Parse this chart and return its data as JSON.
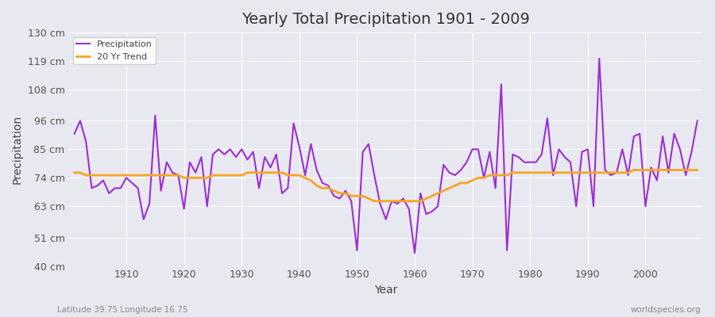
{
  "title": "Yearly Total Precipitation 1901 - 2009",
  "xlabel": "Year",
  "ylabel": "Precipitation",
  "subtitle_left": "Latitude 39.75 Longitude 16.75",
  "subtitle_right": "worldspecies.org",
  "ylim": [
    40,
    130
  ],
  "xlim": [
    1901,
    2009
  ],
  "yticks": [
    40,
    51,
    63,
    74,
    85,
    96,
    108,
    119,
    130
  ],
  "ytick_labels": [
    "40 cm",
    "51 cm",
    "63 cm",
    "74 cm",
    "85 cm",
    "96 cm",
    "108 cm",
    "119 cm",
    "130 cm"
  ],
  "background_color": "#e8e8f0",
  "plot_bg_color": "#e8e8f0",
  "precip_color": "#9b30d0",
  "trend_color": "#f5a623",
  "precip_linewidth": 1.5,
  "trend_linewidth": 2.0,
  "years": [
    1901,
    1902,
    1903,
    1904,
    1905,
    1906,
    1907,
    1908,
    1909,
    1910,
    1911,
    1912,
    1913,
    1914,
    1915,
    1916,
    1917,
    1918,
    1919,
    1920,
    1921,
    1922,
    1923,
    1924,
    1925,
    1926,
    1927,
    1928,
    1929,
    1930,
    1931,
    1932,
    1933,
    1934,
    1935,
    1936,
    1937,
    1938,
    1939,
    1940,
    1941,
    1942,
    1943,
    1944,
    1945,
    1946,
    1947,
    1948,
    1949,
    1950,
    1951,
    1952,
    1953,
    1954,
    1955,
    1956,
    1957,
    1958,
    1959,
    1960,
    1961,
    1962,
    1963,
    1964,
    1965,
    1966,
    1967,
    1968,
    1969,
    1970,
    1971,
    1972,
    1973,
    1974,
    1975,
    1976,
    1977,
    1978,
    1979,
    1980,
    1981,
    1982,
    1983,
    1984,
    1985,
    1986,
    1987,
    1988,
    1989,
    1990,
    1991,
    1992,
    1993,
    1994,
    1995,
    1996,
    1997,
    1998,
    1999,
    2000,
    2001,
    2002,
    2003,
    2004,
    2005,
    2006,
    2007,
    2008,
    2009
  ],
  "precipitation": [
    91,
    96,
    88,
    70,
    71,
    73,
    68,
    70,
    70,
    74,
    72,
    70,
    58,
    64,
    98,
    69,
    80,
    76,
    75,
    62,
    80,
    76,
    82,
    63,
    83,
    85,
    83,
    85,
    82,
    85,
    81,
    84,
    70,
    82,
    78,
    83,
    68,
    70,
    95,
    86,
    75,
    87,
    77,
    72,
    71,
    67,
    66,
    69,
    65,
    46,
    84,
    87,
    75,
    64,
    58,
    65,
    64,
    66,
    62,
    45,
    68,
    60,
    61,
    63,
    79,
    76,
    75,
    77,
    80,
    85,
    85,
    74,
    84,
    70,
    110,
    46,
    83,
    82,
    80,
    80,
    80,
    83,
    97,
    75,
    85,
    82,
    80,
    63,
    84,
    85,
    63,
    120,
    77,
    75,
    76,
    85,
    75,
    90,
    91,
    63,
    78,
    73,
    90,
    76,
    91,
    85,
    75,
    84,
    96
  ],
  "trend": [
    76,
    76,
    75,
    75,
    75,
    75,
    75,
    75,
    75,
    75,
    75,
    75,
    75,
    75,
    75,
    75,
    75,
    75,
    75,
    74,
    74,
    74,
    74,
    74,
    75,
    75,
    75,
    75,
    75,
    75,
    76,
    76,
    76,
    76,
    76,
    76,
    76,
    75,
    75,
    75,
    74,
    73,
    71,
    70,
    70,
    69,
    68,
    68,
    67,
    67,
    67,
    66,
    65,
    65,
    65,
    65,
    65,
    65,
    65,
    65,
    65,
    66,
    67,
    68,
    69,
    70,
    71,
    72,
    72,
    73,
    74,
    74,
    75,
    75,
    75,
    75,
    76,
    76,
    76,
    76,
    76,
    76,
    76,
    76,
    76,
    76,
    76,
    76,
    76,
    76,
    76,
    76,
    76,
    76,
    76,
    76,
    76,
    77,
    77,
    77,
    77,
    77,
    77,
    77,
    77,
    77,
    77,
    77,
    77
  ]
}
